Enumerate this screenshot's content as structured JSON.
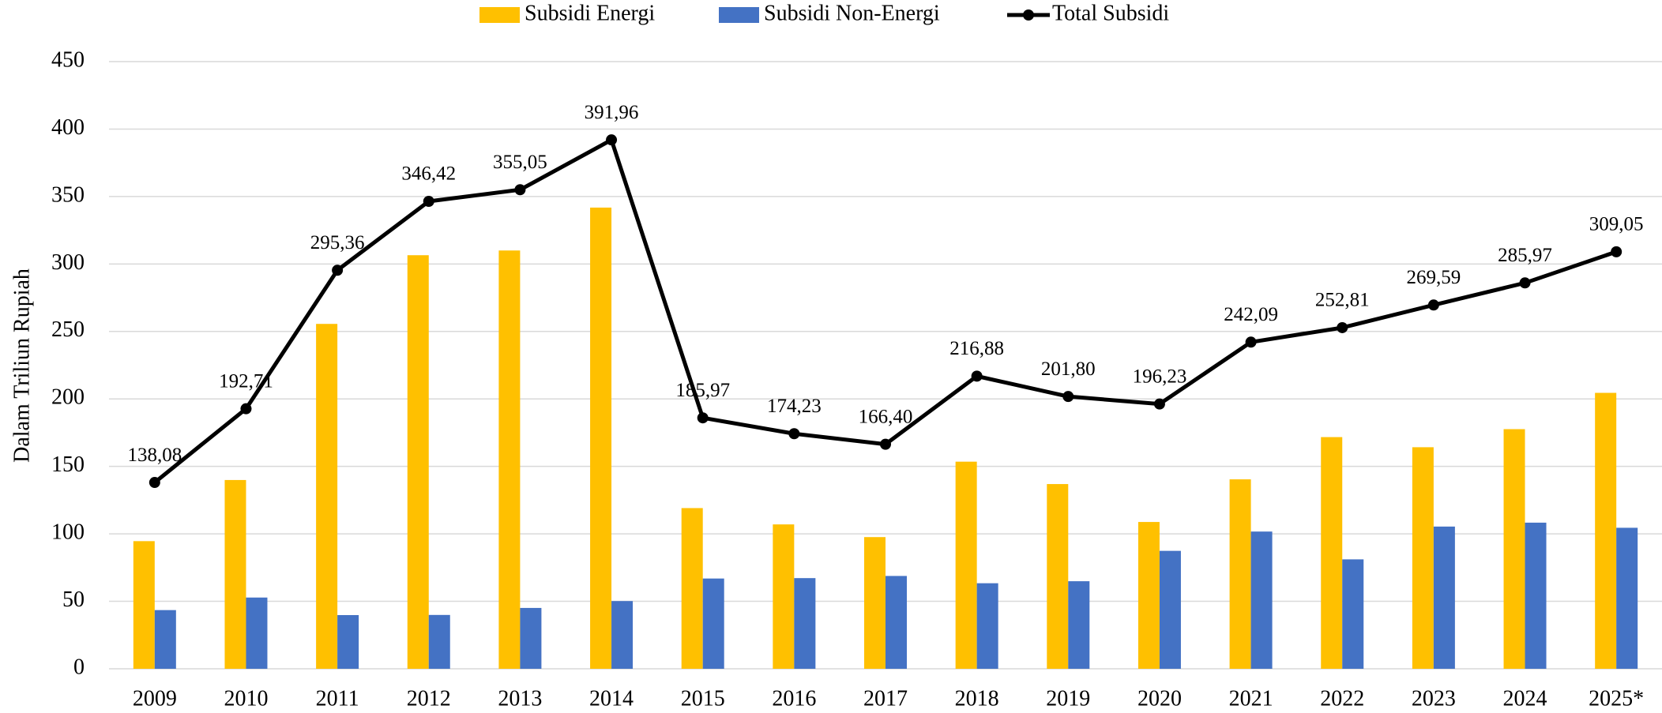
{
  "chart_data": {
    "type": "bar",
    "y_label": "Dalam Triliun Rupiah",
    "categories": [
      "2009",
      "2010",
      "2011",
      "2012",
      "2013",
      "2014",
      "2015",
      "2016",
      "2017",
      "2018",
      "2019",
      "2020",
      "2021",
      "2022",
      "2023",
      "2024",
      "2025*"
    ],
    "series": [
      {
        "name": "Subsidi Energi",
        "color": "#ffc000",
        "values": [
          94.6,
          139.9,
          255.6,
          306.5,
          310.0,
          341.8,
          119.1,
          107.0,
          97.6,
          153.5,
          136.9,
          108.8,
          140.4,
          171.7,
          164.2,
          177.6,
          204.5
        ]
      },
      {
        "name": "Subsidi Non-Energi",
        "color": "#4472c4",
        "values": [
          43.5,
          52.8,
          39.8,
          39.9,
          45.1,
          50.2,
          66.9,
          67.2,
          68.8,
          63.4,
          64.9,
          87.4,
          101.7,
          81.1,
          105.4,
          108.3,
          104.5
        ]
      },
      {
        "name": "Total Subsidi",
        "type": "line",
        "color": "#000000",
        "values": [
          138.08,
          192.71,
          295.36,
          346.42,
          355.05,
          391.96,
          185.97,
          174.23,
          166.4,
          216.88,
          201.8,
          196.23,
          242.09,
          252.81,
          269.59,
          285.97,
          309.05
        ],
        "value_labels": [
          "138,08",
          "192,71",
          "295,36",
          "346,42",
          "355,05",
          "391,96",
          "185,97",
          "174,23",
          "166,40",
          "216,88",
          "201,80",
          "196,23",
          "242,09",
          "252,81",
          "269,59",
          "285,97",
          "309,05"
        ]
      }
    ],
    "ylim": [
      0,
      450
    ],
    "yticks": [
      0,
      50,
      100,
      150,
      200,
      250,
      300,
      350,
      400,
      450
    ],
    "grid": true,
    "legend": "top"
  }
}
